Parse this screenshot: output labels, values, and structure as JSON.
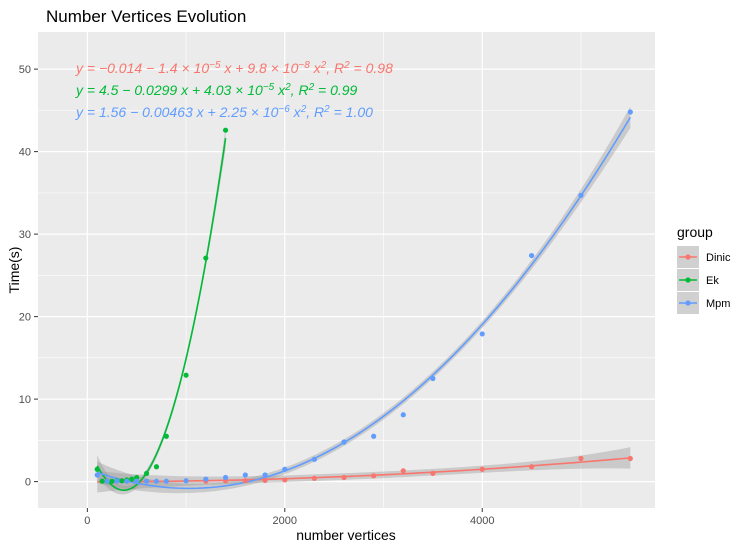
{
  "chart_data": {
    "type": "scatter",
    "title": "Number Vertices Evolution",
    "xlabel": "number vertices",
    "ylabel": "Time(s)",
    "xlim": [
      -500,
      5750
    ],
    "ylim": [
      -3.2,
      54.5
    ],
    "xticks": [
      0,
      2000,
      4000
    ],
    "yticks": [
      0,
      10,
      20,
      30,
      40,
      50
    ],
    "grid": true,
    "legend": {
      "title": "group",
      "position": "right"
    },
    "series": [
      {
        "name": "Dinic",
        "color": "#F8766D",
        "x": [
          1200,
          1400,
          1600,
          1800,
          2000,
          2300,
          2600,
          2900,
          3200,
          3500,
          4000,
          4500,
          5000,
          5500
        ],
        "y": [
          0.05,
          0.1,
          0.1,
          0.15,
          0.2,
          0.4,
          0.5,
          0.7,
          1.3,
          1.0,
          1.5,
          1.8,
          2.8,
          2.8
        ],
        "fit": {
          "a": -0.014,
          "b": -1.4e-05,
          "c": 9.8e-08,
          "xmin": 100,
          "xmax": 5500
        },
        "equation": {
          "parts": [
            {
              "t": "y = −0.014 − 1.4 × 10"
            },
            {
              "t": "−5",
              "sup": true
            },
            {
              "t": " x + 9.8 × 10"
            },
            {
              "t": "−8",
              "sup": true
            },
            {
              "t": " x"
            },
            {
              "t": "2",
              "sup": true
            },
            {
              "t": ", R"
            },
            {
              "t": "2",
              "sup": true
            },
            {
              "t": " = 0.98"
            }
          ]
        }
      },
      {
        "name": "Ek",
        "color": "#00BA38",
        "x": [
          100,
          150,
          200,
          250,
          300,
          350,
          400,
          450,
          500,
          600,
          700,
          800,
          1000,
          1200,
          1400
        ],
        "y": [
          1.5,
          0.05,
          0.05,
          0.05,
          0.1,
          0.1,
          0.2,
          0.3,
          0.5,
          1.0,
          1.8,
          5.5,
          12.9,
          27.1,
          42.6
        ],
        "fit": {
          "a": 4.5,
          "b": -0.0299,
          "c": 4.03e-05,
          "xmin": 100,
          "xmax": 1400
        },
        "equation": {
          "parts": [
            {
              "t": "y = 4.5 − 0.0299 x + 4.03 × 10"
            },
            {
              "t": "−5",
              "sup": true
            },
            {
              "t": " x"
            },
            {
              "t": "2",
              "sup": true
            },
            {
              "t": ", R"
            },
            {
              "t": "2",
              "sup": true
            },
            {
              "t": " = 0.99"
            }
          ]
        }
      },
      {
        "name": "Mpm",
        "color": "#619CFF",
        "x": [
          100,
          200,
          300,
          400,
          500,
          600,
          700,
          800,
          1000,
          1200,
          1400,
          1600,
          1800,
          2000,
          2300,
          2600,
          2900,
          3200,
          3500,
          4000,
          4500,
          5000,
          5500
        ],
        "y": [
          0.8,
          0.05,
          0.05,
          0.05,
          0.05,
          0.05,
          0.05,
          0.05,
          0.1,
          0.3,
          0.5,
          0.8,
          0.8,
          1.5,
          2.7,
          4.8,
          5.5,
          8.1,
          12.5,
          17.9,
          27.4,
          34.7,
          44.8
        ],
        "fit": {
          "a": 1.56,
          "b": -0.00463,
          "c": 2.25e-06,
          "xmin": 100,
          "xmax": 5500
        },
        "equation": {
          "parts": [
            {
              "t": "y = 1.56 − 0.00463 x + 2.25 × 10"
            },
            {
              "t": "−6",
              "sup": true
            },
            {
              "t": " x"
            },
            {
              "t": "2",
              "sup": true
            },
            {
              "t": ", R"
            },
            {
              "t": "2",
              "sup": true
            },
            {
              "t": " = 1.00"
            }
          ]
        }
      }
    ]
  }
}
